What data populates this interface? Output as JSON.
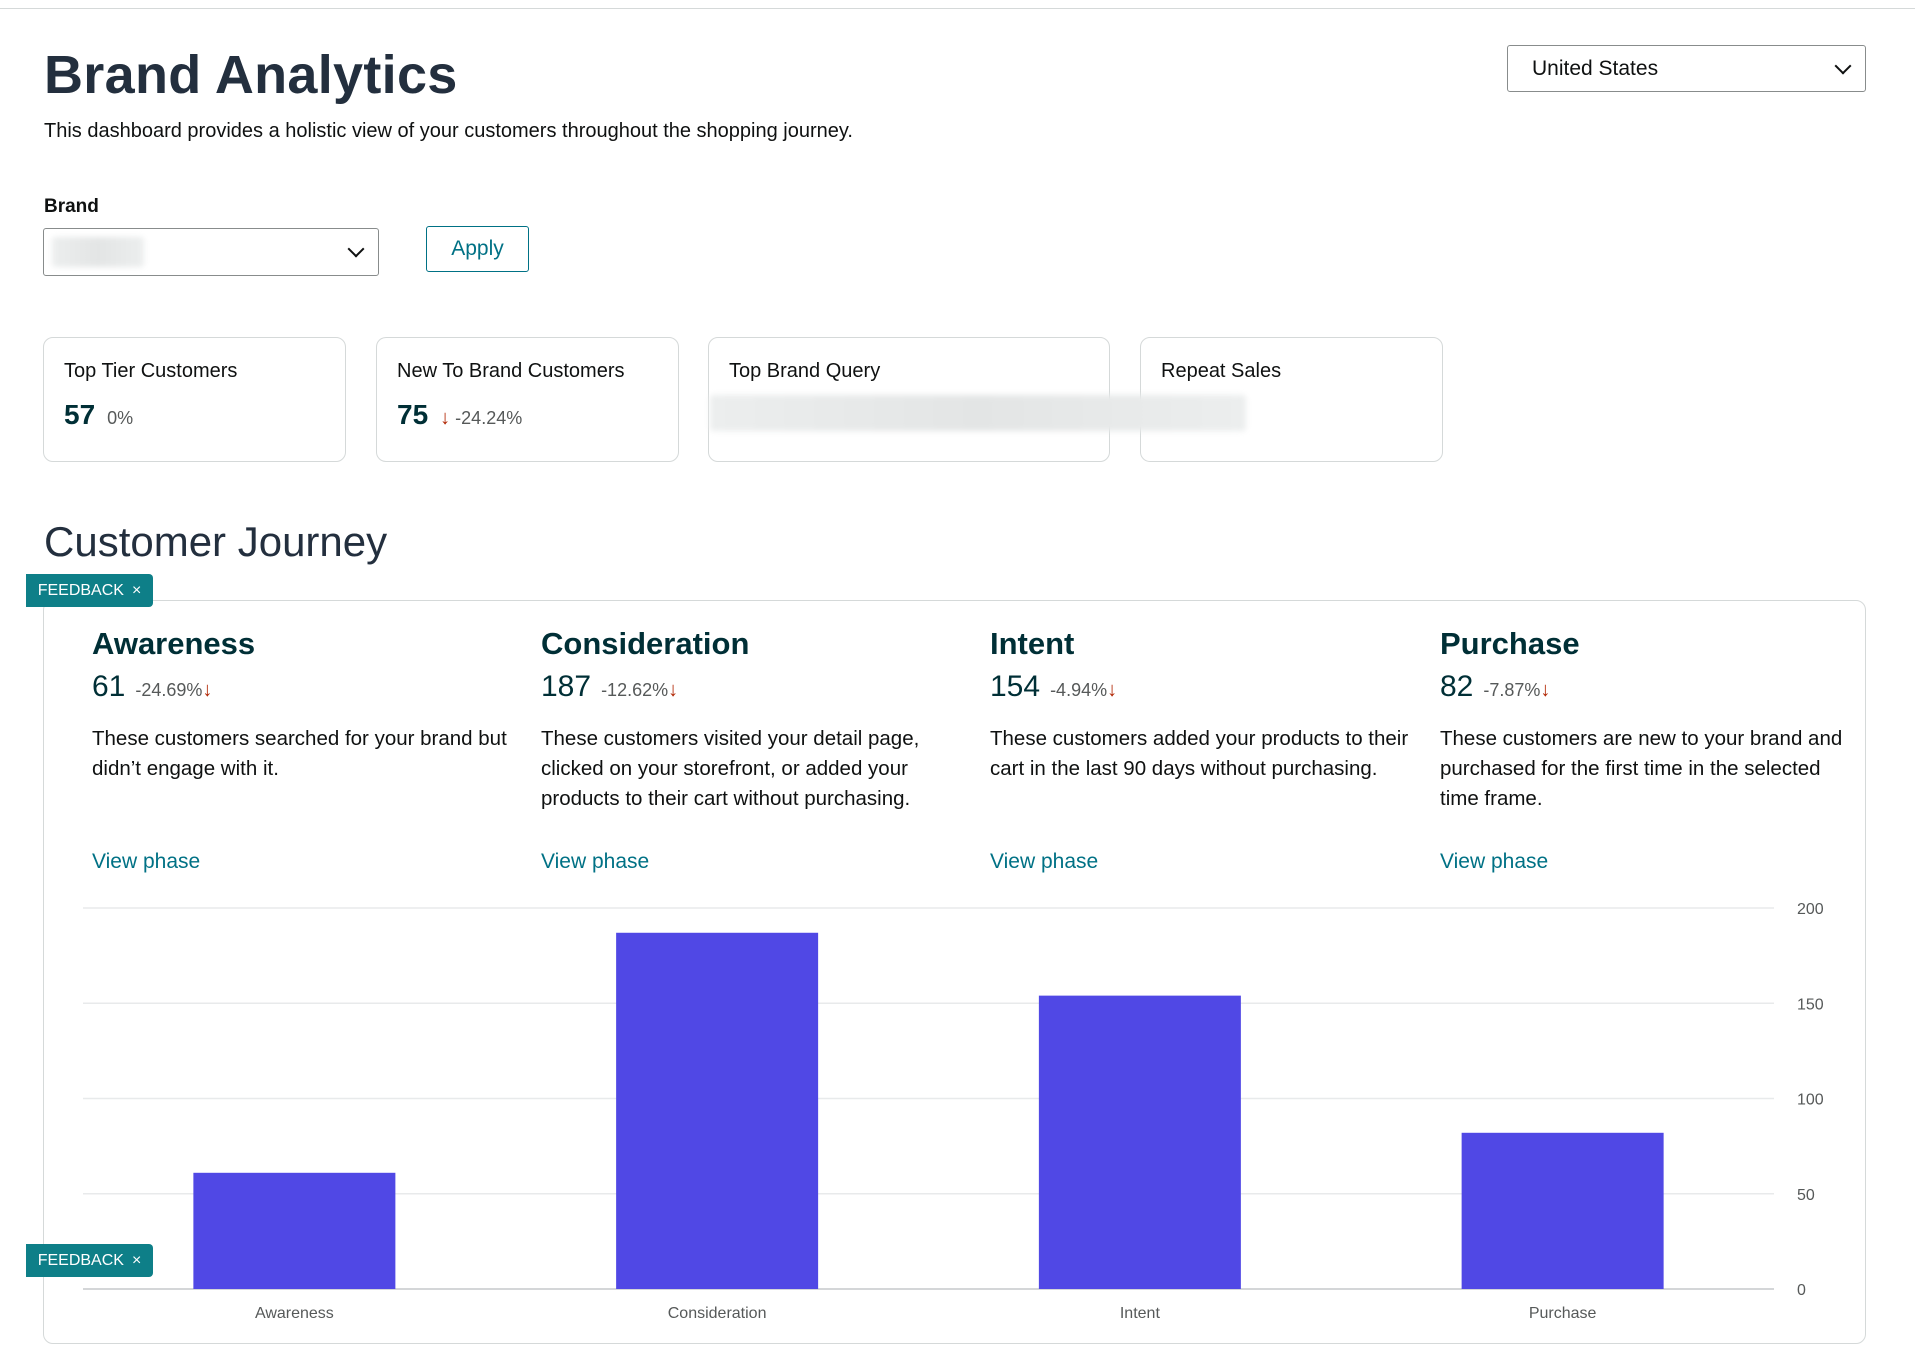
{
  "header": {
    "title": "Brand Analytics",
    "subtitle": "This dashboard provides a holistic view of your customers throughout the shopping journey.",
    "country": "United States"
  },
  "filters": {
    "brand_label": "Brand",
    "apply_label": "Apply"
  },
  "cards": [
    {
      "title": "Top Tier Customers",
      "value": "57",
      "change": "0%"
    },
    {
      "title": "New To Brand Customers",
      "value": "75",
      "change": "-24.24%"
    },
    {
      "title": "Top Brand Query"
    },
    {
      "title": "Repeat Sales"
    }
  ],
  "journey": {
    "title": "Customer Journey",
    "phases": [
      {
        "name": "Awareness",
        "value": "61",
        "change": "-24.69%",
        "desc": "These customers searched for your brand but didn’t engage with it.",
        "link": "View phase"
      },
      {
        "name": "Consideration",
        "value": "187",
        "change": "-12.62%",
        "desc": "These customers visited your detail page, clicked on your storefront, or added your products to their cart without purchasing.",
        "link": "View phase"
      },
      {
        "name": "Intent",
        "value": "154",
        "change": "-4.94%",
        "desc": "These customers added your products to their cart in the last 90 days without purchasing.",
        "link": "View phase"
      },
      {
        "name": "Purchase",
        "value": "82",
        "change": "-7.87%",
        "desc": "These customers are new to your brand and purchased for the first time in the selected time frame.",
        "link": "View phase"
      }
    ]
  },
  "feedback": {
    "label": "FEEDBACK",
    "close": "×"
  },
  "chart_data": {
    "type": "bar",
    "categories": [
      "Awareness",
      "Consideration",
      "Intent",
      "Purchase"
    ],
    "values": [
      61,
      187,
      154,
      82
    ],
    "ylim": [
      0,
      200
    ],
    "yticks": [
      "0",
      "50",
      "100",
      "150",
      "200"
    ],
    "bar_color": "#5048e5",
    "grid": true,
    "title": "",
    "xlabel": "",
    "ylabel": ""
  }
}
